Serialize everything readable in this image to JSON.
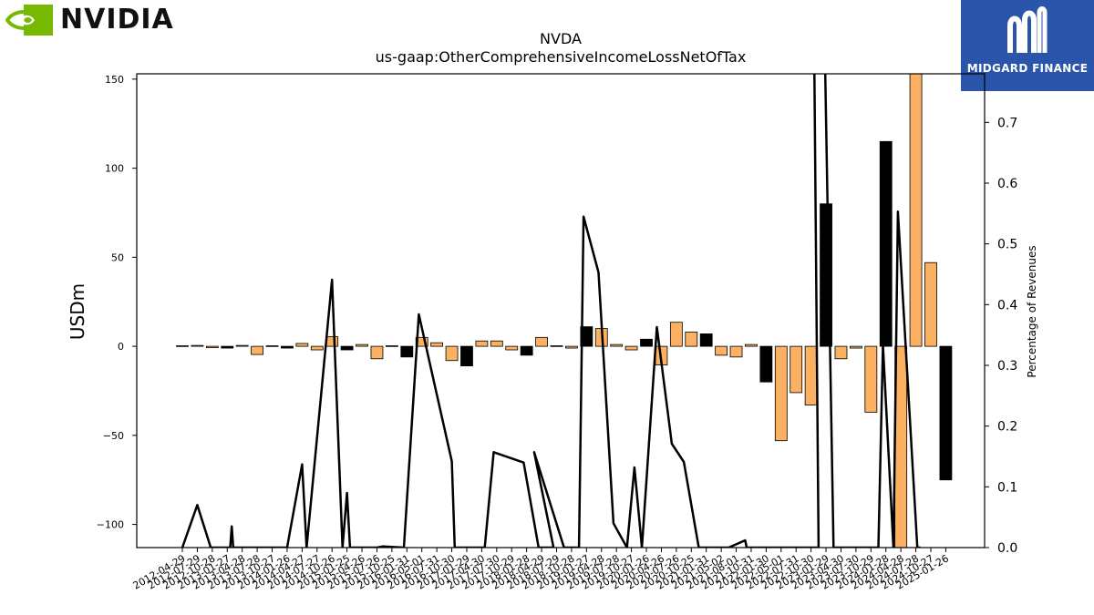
{
  "brand": {
    "left_wordmark": "NVIDIA",
    "right_wordmark": "MIDGARD FINANCE",
    "left_icon": "nvidia-eye-icon",
    "right_icon": "midgard-m-icon",
    "left_color": "#76b900",
    "right_color": "#2a55aa"
  },
  "chart_data": {
    "type": "bar",
    "title": "NVDA",
    "subtitle": "us-gaap:OtherComprehensiveIncomeLossNetOfTax",
    "ylabel": "USDm",
    "y2label": "Percentage of Revenues",
    "ylim": [
      -113,
      153
    ],
    "y2lim": [
      0.0,
      0.78
    ],
    "yticks": [
      -100,
      -50,
      0,
      50,
      100,
      150
    ],
    "y2ticks": [
      0.0,
      0.1,
      0.2,
      0.3,
      0.4,
      0.5,
      0.6,
      0.7
    ],
    "bar_colors": {
      "fiscal_q4": "#000000",
      "other": "#fbb062"
    },
    "line_color": "#000000",
    "categories": [
      "2012-04-29",
      "2012-07-29",
      "2012-10-28",
      "2013-01-27",
      "2013-04-28",
      "2013-07-28",
      "2013-10-27",
      "2014-01-26",
      "2014-04-27",
      "2014-07-27",
      "2014-10-26",
      "2015-01-25",
      "2015-04-26",
      "2015-07-26",
      "2015-10-25",
      "2016-01-31",
      "2016-05-01",
      "2016-07-31",
      "2016-10-30",
      "2017-01-29",
      "2017-04-30",
      "2017-07-30",
      "2017-10-29",
      "2018-01-28",
      "2018-04-29",
      "2018-07-29",
      "2018-10-28",
      "2019-01-27",
      "2019-04-28",
      "2019-07-28",
      "2019-10-27",
      "2020-01-26",
      "2020-04-26",
      "2020-07-26",
      "2020-10-25",
      "2021-01-31",
      "2021-05-02",
      "2021-08-01",
      "2021-10-31",
      "2022-01-30",
      "2022-05-01",
      "2022-07-31",
      "2022-10-30",
      "2023-01-29",
      "2023-04-30",
      "2023-07-30",
      "2023-10-29",
      "2024-01-28",
      "2024-04-28",
      "2024-07-28",
      "2024-10-27",
      "2025-01-26"
    ],
    "xtick_labels": [
      "2012-04-29",
      "2012-07-29",
      "2012-10-28",
      "2013-01-27",
      "2013-04-28",
      "2013-07-28",
      "2013-10-27",
      "2014-01-26",
      "2014-04-27",
      "2014-07-27",
      "2014-10-26",
      "2015-01-25",
      "2015-04-26",
      "2015-07-26",
      "2015-10-25",
      "2016-01-31",
      "2016-05-01",
      "2016-07-31",
      "2016-10-30",
      "2017-01-29",
      "2017-04-30",
      "2017-07-30",
      "2017-10-29",
      "2018-01-28",
      "2018-04-29",
      "2018-07-29",
      "2018-10-28",
      "2019-01-27",
      "2019-04-28",
      "2019-07-28",
      "2019-10-27",
      "2020-01-26",
      "2020-04-26",
      "2020-07-26",
      "2020-10-25",
      "2021-01-31",
      "2021-05-02",
      "2021-08-01",
      "2021-10-31",
      "2022-01-30",
      "2022-05-01",
      "2022-07-31",
      "2022-10-30",
      "2023-01-29",
      "2023-04-30",
      "2023-07-30",
      "2023-10-29",
      "2024-01-28",
      "2024-04-28",
      "2024-07-28",
      "2024-10-27",
      "2025-01-26"
    ],
    "values": [
      0.3,
      0.5,
      -0.8,
      -1.0,
      0.5,
      -4.6,
      0.3,
      -1.0,
      1.6,
      -2.0,
      5.4,
      -2.0,
      1.0,
      -7.0,
      0.3,
      -6.0,
      5.0,
      2.0,
      -8.0,
      -11.0,
      3.0,
      3.0,
      -2.0,
      -5.0,
      5.0,
      0.3,
      -1.0,
      11.0,
      10.0,
      1.0,
      -2.0,
      4.0,
      -10.5,
      13.5,
      8.0,
      7.0,
      -5.0,
      -6.0,
      1.0,
      -20.0,
      -53.0,
      -26.0,
      -33.0,
      80.0,
      -7.0,
      -1.0,
      -37.0,
      115.0,
      -115.0,
      154.0,
      47.0,
      -75.0
    ],
    "line_values": [
      0.0,
      0.07,
      0.0,
      0.0,
      0.035,
      0.0,
      0.0,
      0.0,
      0.0,
      0.137,
      0.0,
      0.441,
      0.0,
      0.09,
      0.0,
      0.0,
      0.002,
      0.0,
      0.384,
      0.142,
      0.0,
      0.0,
      0.0,
      0.157,
      0.14,
      0.0,
      0.0,
      0.157,
      0.0,
      0.0,
      0.545,
      0.453,
      0.04,
      0.0,
      0.132,
      0.0,
      0.363,
      0.171,
      0.141,
      0.0,
      0.0,
      0.012,
      0.0,
      0.0,
      0.0,
      0.0,
      0.0,
      0.85,
      0.85,
      0.0,
      0.0,
      0.0,
      0.333,
      0.0,
      0.553,
      0.0,
      0.0
    ],
    "line_x_index": [
      0,
      1,
      1.9,
      3.2,
      3.3,
      3.4,
      4.2,
      5,
      7,
      8,
      8.3,
      10,
      10.7,
      11,
      11.2,
      13,
      13.4,
      14.8,
      15.8,
      18,
      18.2,
      19.2,
      20.2,
      20.8,
      22.8,
      23.8,
      24.8,
      23.5,
      25.5,
      26.5,
      26.8,
      27.8,
      28.8,
      29.7,
      30.2,
      30.7,
      31.7,
      32.7,
      33.5,
      34.5,
      36.5,
      37.6,
      37.7,
      41.5,
      42.5,
      41.5,
      42.5,
      42.2,
      42.9,
      43.5,
      46.3,
      46.5,
      46.8,
      47.5,
      47.8,
      49.1,
      49.3
    ],
    "grid": false
  }
}
